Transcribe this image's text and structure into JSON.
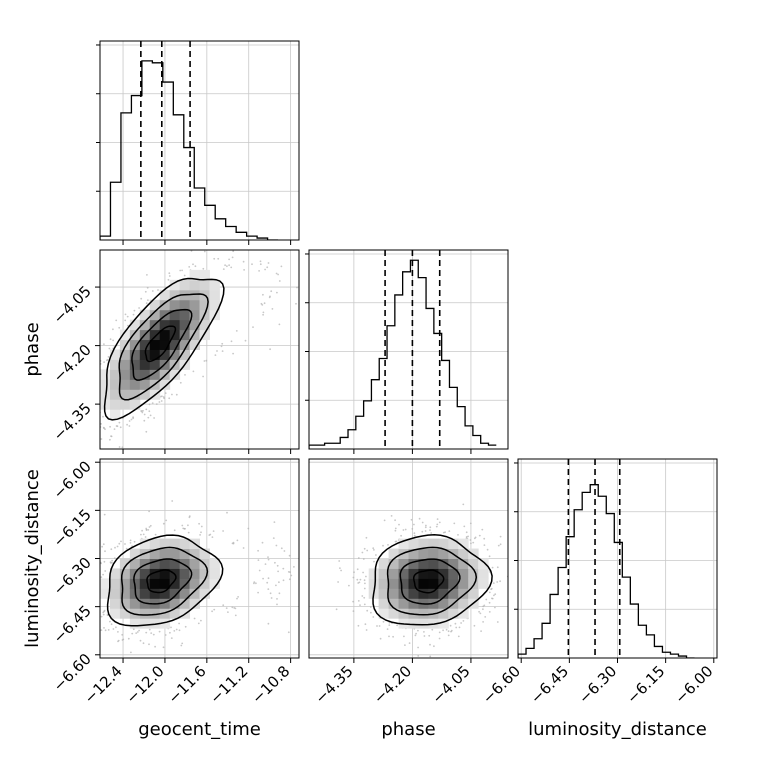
{
  "chart_data": {
    "type": "corner",
    "parameters": [
      {
        "name": "geocent_time",
        "label": "geocent_time",
        "lim": [
          -12.62,
          -10.72
        ],
        "ticks": [
          -12.4,
          -12.0,
          -11.6,
          -11.2,
          -10.8
        ],
        "tick_labels": [
          "−12.4",
          "−12.0",
          "−11.6",
          "−11.2",
          "−10.8"
        ],
        "quantiles": [
          -12.23,
          -12.03,
          -11.76
        ]
      },
      {
        "name": "phase",
        "label": "phase",
        "lim": [
          -4.465,
          -3.955
        ],
        "ticks": [
          -4.35,
          -4.2,
          -4.05
        ],
        "tick_labels": [
          "−4.35",
          "−4.20",
          "−4.05"
        ],
        "quantiles": [
          -4.27,
          -4.2,
          -4.13
        ]
      },
      {
        "name": "luminosity_distance",
        "label": "luminosity_distance",
        "lim": [
          -6.61,
          -5.99
        ],
        "ticks": [
          -6.6,
          -6.45,
          -6.3,
          -6.15,
          -6.0
        ],
        "tick_labels": [
          "−6.60",
          "−6.45",
          "−6.30",
          "−6.15",
          "−6.00"
        ],
        "quantiles": [
          -6.453,
          -6.37,
          -6.293
        ]
      }
    ],
    "histograms": [
      {
        "parameter": "geocent_time",
        "bin_edges": [
          -12.62,
          -12.52,
          -12.42,
          -12.32,
          -12.22,
          -12.12,
          -12.02,
          -11.92,
          -11.82,
          -11.72,
          -11.62,
          -11.52,
          -11.42,
          -11.32,
          -11.22,
          -11.12,
          -11.02,
          -10.92
        ],
        "counts": [
          0.02,
          0.3,
          0.66,
          0.75,
          0.93,
          0.92,
          0.82,
          0.65,
          0.48,
          0.27,
          0.18,
          0.11,
          0.07,
          0.04,
          0.02,
          0.01,
          0.0
        ]
      },
      {
        "parameter": "phase",
        "bin_edges": [
          -4.465,
          -4.445,
          -4.425,
          -4.405,
          -4.385,
          -4.365,
          -4.345,
          -4.325,
          -4.305,
          -4.285,
          -4.265,
          -4.245,
          -4.225,
          -4.205,
          -4.185,
          -4.165,
          -4.145,
          -4.125,
          -4.105,
          -4.085,
          -4.065,
          -4.045,
          -4.025,
          -4.005,
          -3.985
        ],
        "counts": [
          0.02,
          0.02,
          0.03,
          0.03,
          0.06,
          0.1,
          0.17,
          0.25,
          0.36,
          0.47,
          0.64,
          0.8,
          0.92,
          0.98,
          0.89,
          0.73,
          0.6,
          0.46,
          0.32,
          0.22,
          0.12,
          0.07,
          0.03,
          0.02
        ]
      },
      {
        "parameter": "luminosity_distance",
        "bin_edges": [
          -6.61,
          -6.585,
          -6.56,
          -6.535,
          -6.51,
          -6.485,
          -6.46,
          -6.435,
          -6.41,
          -6.385,
          -6.36,
          -6.335,
          -6.31,
          -6.285,
          -6.26,
          -6.235,
          -6.21,
          -6.185,
          -6.16,
          -6.135,
          -6.11,
          -6.085,
          -6.06
        ],
        "counts": [
          0.02,
          0.05,
          0.1,
          0.18,
          0.33,
          0.47,
          0.63,
          0.77,
          0.86,
          0.9,
          0.84,
          0.75,
          0.6,
          0.42,
          0.28,
          0.17,
          0.12,
          0.06,
          0.03,
          0.02,
          0.01,
          0.0
        ]
      }
    ],
    "joint": [
      {
        "x": "geocent_time",
        "y": "phase",
        "peak": [
          -12.05,
          -4.195
        ],
        "sigma": [
          0.28,
          0.09
        ],
        "rho": 0.72
      },
      {
        "x": "geocent_time",
        "y": "luminosity_distance",
        "peak": [
          -12.04,
          -6.37
        ],
        "sigma": [
          0.27,
          0.07
        ],
        "rho": 0.25
      },
      {
        "x": "phase",
        "y": "luminosity_distance",
        "peak": [
          -4.16,
          -6.37
        ],
        "sigma": [
          0.075,
          0.07
        ],
        "rho": 0.1
      }
    ],
    "contour_levels_sigma": [
      0.5,
      1.0,
      1.5,
      2.0
    ],
    "grid": true,
    "title": "",
    "colors": {
      "line": "#000000",
      "scatter": "#b0b0b0",
      "grid": "#c8c8c8"
    }
  }
}
